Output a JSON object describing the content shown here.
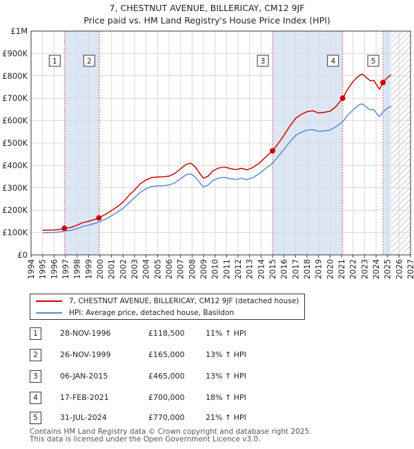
{
  "title_line1": "7, CHESTNUT AVENUE, BILLERICAY, CM12 9JF",
  "title_line2": "Price paid vs. HM Land Registry's House Price Index (HPI)",
  "chart_data": {
    "type": "line",
    "ylim": [
      0,
      1000000
    ],
    "xlim": [
      1994,
      2027
    ],
    "y_ticks": [
      {
        "value": 0,
        "label": "£0"
      },
      {
        "value": 100000,
        "label": "£100K"
      },
      {
        "value": 200000,
        "label": "£200K"
      },
      {
        "value": 300000,
        "label": "£300K"
      },
      {
        "value": 400000,
        "label": "£400K"
      },
      {
        "value": 500000,
        "label": "£500K"
      },
      {
        "value": 600000,
        "label": "£600K"
      },
      {
        "value": 700000,
        "label": "£700K"
      },
      {
        "value": 800000,
        "label": "£800K"
      },
      {
        "value": 900000,
        "label": "£900K"
      },
      {
        "value": 1000000,
        "label": "£1M"
      }
    ],
    "x_ticks": [
      "1994",
      "1995",
      "1996",
      "1997",
      "1998",
      "1999",
      "2000",
      "2001",
      "2002",
      "2003",
      "2004",
      "2005",
      "2006",
      "2007",
      "2008",
      "2009",
      "2010",
      "2011",
      "2012",
      "2013",
      "2014",
      "2015",
      "2016",
      "2017",
      "2018",
      "2019",
      "2020",
      "2021",
      "2022",
      "2023",
      "2024",
      "2025",
      "2026",
      "2027"
    ],
    "hatch_after": 2025.3,
    "shaded_periods": [
      [
        1996.9,
        1999.9
      ],
      [
        2015.0,
        2021.1
      ],
      [
        2024.6,
        2025.3
      ]
    ],
    "colors": {
      "price": "#cc0000",
      "hpi": "#5b8ac9",
      "shade": "#dce6f5",
      "grid": "#d8d8d8",
      "vline": "#e06060"
    },
    "series": [
      {
        "name": "7, CHESTNUT AVENUE, BILLERICAY, CM12 9JF (detached house)",
        "color": "#cc0000",
        "points": [
          [
            1995.0,
            110000
          ],
          [
            1995.5,
            110500
          ],
          [
            1996.0,
            111000
          ],
          [
            1996.5,
            114000
          ],
          [
            1996.9,
            118500
          ],
          [
            1997.5,
            123000
          ],
          [
            1998.0,
            133000
          ],
          [
            1998.5,
            144000
          ],
          [
            1999.0,
            150000
          ],
          [
            1999.5,
            158000
          ],
          [
            1999.9,
            165000
          ],
          [
            2000.5,
            182000
          ],
          [
            2001.0,
            198000
          ],
          [
            2001.5,
            215000
          ],
          [
            2002.0,
            236000
          ],
          [
            2002.5,
            265000
          ],
          [
            2003.0,
            290000
          ],
          [
            2003.5,
            318000
          ],
          [
            2004.0,
            335000
          ],
          [
            2004.5,
            346000
          ],
          [
            2005.0,
            348000
          ],
          [
            2005.5,
            349000
          ],
          [
            2006.0,
            352000
          ],
          [
            2006.5,
            364000
          ],
          [
            2007.0,
            385000
          ],
          [
            2007.5,
            405000
          ],
          [
            2007.9,
            410000
          ],
          [
            2008.3,
            392000
          ],
          [
            2008.7,
            362000
          ],
          [
            2009.0,
            343000
          ],
          [
            2009.4,
            352000
          ],
          [
            2009.8,
            375000
          ],
          [
            2010.3,
            388000
          ],
          [
            2010.8,
            393000
          ],
          [
            2011.3,
            386000
          ],
          [
            2011.8,
            381000
          ],
          [
            2012.3,
            387000
          ],
          [
            2012.8,
            380000
          ],
          [
            2013.3,
            391000
          ],
          [
            2013.8,
            408000
          ],
          [
            2014.3,
            432000
          ],
          [
            2015.0,
            465000
          ],
          [
            2015.5,
            498000
          ],
          [
            2016.0,
            535000
          ],
          [
            2016.5,
            575000
          ],
          [
            2017.0,
            610000
          ],
          [
            2017.5,
            628000
          ],
          [
            2018.0,
            640000
          ],
          [
            2018.5,
            644000
          ],
          [
            2019.0,
            634000
          ],
          [
            2019.5,
            637000
          ],
          [
            2020.0,
            642000
          ],
          [
            2020.5,
            662000
          ],
          [
            2021.1,
            700000
          ],
          [
            2021.5,
            738000
          ],
          [
            2022.0,
            775000
          ],
          [
            2022.5,
            800000
          ],
          [
            2022.8,
            808000
          ],
          [
            2023.1,
            795000
          ],
          [
            2023.5,
            778000
          ],
          [
            2023.8,
            780000
          ],
          [
            2024.1,
            755000
          ],
          [
            2024.3,
            740000
          ],
          [
            2024.6,
            770000
          ],
          [
            2024.9,
            788000
          ],
          [
            2025.3,
            805000
          ]
        ]
      },
      {
        "name": "HPI: Average price, detached house, Basildon",
        "color": "#5b8ac9",
        "points": [
          [
            1995.0,
            99000
          ],
          [
            1995.5,
            99500
          ],
          [
            1996.0,
            100000
          ],
          [
            1996.5,
            103000
          ],
          [
            1996.9,
            106500
          ],
          [
            1997.5,
            110000
          ],
          [
            1998.0,
            118000
          ],
          [
            1998.5,
            127000
          ],
          [
            1999.0,
            133000
          ],
          [
            1999.5,
            140000
          ],
          [
            1999.9,
            146000
          ],
          [
            2000.5,
            160000
          ],
          [
            2001.0,
            175000
          ],
          [
            2001.5,
            190000
          ],
          [
            2002.0,
            208000
          ],
          [
            2002.5,
            232000
          ],
          [
            2003.0,
            256000
          ],
          [
            2003.5,
            279000
          ],
          [
            2004.0,
            296000
          ],
          [
            2004.5,
            306000
          ],
          [
            2005.0,
            308000
          ],
          [
            2005.5,
            309000
          ],
          [
            2006.0,
            312000
          ],
          [
            2006.5,
            322000
          ],
          [
            2007.0,
            340000
          ],
          [
            2007.5,
            358000
          ],
          [
            2007.9,
            362000
          ],
          [
            2008.3,
            347000
          ],
          [
            2008.7,
            321000
          ],
          [
            2009.0,
            303000
          ],
          [
            2009.4,
            312000
          ],
          [
            2009.8,
            332000
          ],
          [
            2010.3,
            343000
          ],
          [
            2010.8,
            347000
          ],
          [
            2011.3,
            341000
          ],
          [
            2011.8,
            337000
          ],
          [
            2012.3,
            342000
          ],
          [
            2012.8,
            336000
          ],
          [
            2013.3,
            346000
          ],
          [
            2013.8,
            361000
          ],
          [
            2014.3,
            382000
          ],
          [
            2015.0,
            410000
          ],
          [
            2015.5,
            440000
          ],
          [
            2016.0,
            472000
          ],
          [
            2016.5,
            505000
          ],
          [
            2017.0,
            533000
          ],
          [
            2017.5,
            548000
          ],
          [
            2018.0,
            557000
          ],
          [
            2018.5,
            560000
          ],
          [
            2019.0,
            552000
          ],
          [
            2019.5,
            554000
          ],
          [
            2020.0,
            558000
          ],
          [
            2020.5,
            572000
          ],
          [
            2021.1,
            595000
          ],
          [
            2021.5,
            622000
          ],
          [
            2022.0,
            648000
          ],
          [
            2022.5,
            670000
          ],
          [
            2022.8,
            675000
          ],
          [
            2023.1,
            663000
          ],
          [
            2023.5,
            648000
          ],
          [
            2023.8,
            650000
          ],
          [
            2024.1,
            628000
          ],
          [
            2024.3,
            618000
          ],
          [
            2024.6,
            638000
          ],
          [
            2024.9,
            652000
          ],
          [
            2025.3,
            665000
          ]
        ]
      }
    ],
    "sales": [
      {
        "label": "1",
        "x": 1996.9,
        "y": 118500
      },
      {
        "label": "2",
        "x": 1999.9,
        "y": 165000
      },
      {
        "label": "3",
        "x": 2015.0,
        "y": 465000
      },
      {
        "label": "4",
        "x": 2021.1,
        "y": 700000
      },
      {
        "label": "5",
        "x": 2024.6,
        "y": 770000
      }
    ]
  },
  "legend": {
    "price": "7, CHESTNUT AVENUE, BILLERICAY, CM12 9JF (detached house)",
    "hpi": "HPI: Average price, detached house, Basildon"
  },
  "transactions": [
    {
      "num": "1",
      "date": "28-NOV-1996",
      "price": "£118,500",
      "hpi": "11% ↑ HPI"
    },
    {
      "num": "2",
      "date": "26-NOV-1999",
      "price": "£165,000",
      "hpi": "13% ↑ HPI"
    },
    {
      "num": "3",
      "date": "06-JAN-2015",
      "price": "£465,000",
      "hpi": "13% ↑ HPI"
    },
    {
      "num": "4",
      "date": "17-FEB-2021",
      "price": "£700,000",
      "hpi": "18% ↑ HPI"
    },
    {
      "num": "5",
      "date": "31-JUL-2024",
      "price": "£770,000",
      "hpi": "21% ↑ HPI"
    }
  ],
  "footer_line1": "Contains HM Land Registry data © Crown copyright and database right 2025.",
  "footer_line2": "This data is licensed under the Open Government Licence v3.0."
}
